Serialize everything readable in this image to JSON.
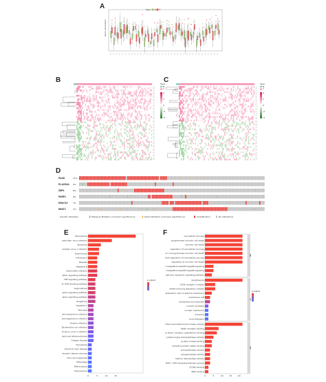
{
  "panels": {
    "a": "A",
    "b": "B",
    "c": "C",
    "d": "D",
    "e": "E",
    "f": "F"
  },
  "panel_a": {
    "legend_title": "Type",
    "legend_items": [
      {
        "label": "N",
        "color": "#9ccc65"
      },
      {
        "label": "T",
        "color": "#ef5350"
      }
    ],
    "ylabel": "Gene expression",
    "num_genes": 36
  },
  "panel_b": {
    "legend_title": "Type",
    "legend_items": [
      {
        "label": "N",
        "color": "#80cbc4"
      },
      {
        "label": "T",
        "color": "#f48fb1"
      }
    ],
    "scale_labels": [
      "4",
      "2",
      "0",
      "-2",
      "-4"
    ]
  },
  "panel_c": {
    "legend_title": "Type",
    "legend_items": [
      {
        "label": "N",
        "color": "#80cbc4"
      },
      {
        "label": "T",
        "color": "#f48fb1"
      }
    ],
    "scale_labels": [
      "4",
      "2",
      "0",
      "-2",
      "-4"
    ]
  },
  "panel_d": {
    "genes": [
      {
        "name": "PASD",
        "pct": "11%"
      },
      {
        "name": "PLA2G4A",
        "pct": "9%"
      },
      {
        "name": "ZBP1",
        "pct": "8%"
      },
      {
        "name": "PARP1",
        "pct": "8%"
      },
      {
        "name": "HDAC10",
        "pct": "7%"
      },
      {
        "name": "NEAT1",
        "pct": "7%"
      }
    ],
    "legend_title": "Genetic Alteration",
    "legend_items": [
      {
        "label": "Missense Mutation (unknown significance)",
        "color": "#4caf50"
      },
      {
        "label": "Splice Mutation (unknown significance)",
        "color": "#ff9800"
      },
      {
        "label": "Amplification",
        "color": "#e53935"
      },
      {
        "label": "No alterations",
        "color": "#bdbdbd"
      }
    ]
  },
  "panel_e": {
    "legend_title": "p.adjust",
    "x_ticks": [
      "0",
      "5",
      "10",
      "15"
    ],
    "terms": [
      {
        "label": "Necroptosis",
        "value": 26,
        "color": "#f44336"
      },
      {
        "label": "Epstein-Barr virus infection",
        "value": 13,
        "color": "#f44336"
      },
      {
        "label": "Apoptosis",
        "value": 7,
        "color": "#f44336"
      },
      {
        "label": "Herpes simplex virus 1 infection",
        "value": 6,
        "color": "#f44336"
      },
      {
        "label": "Tuberculosis",
        "value": 6,
        "color": "#f44336"
      },
      {
        "label": "Influenza A",
        "value": 5,
        "color": "#f44336"
      },
      {
        "label": "Measles",
        "value": 5,
        "color": "#f44336"
      },
      {
        "label": "Hepatitis B",
        "value": 5,
        "color": "#f44336"
      },
      {
        "label": "Salmonella infection",
        "value": 5,
        "color": "#e53950"
      },
      {
        "label": "NOD-like receptor signaling pathway",
        "value": 5,
        "color": "#e53950"
      },
      {
        "label": "TNF signaling pathway",
        "value": 4,
        "color": "#e53950"
      },
      {
        "label": "Cytosolic DNA-sensing pathway",
        "value": 4,
        "color": "#d43f6a"
      },
      {
        "label": "Legionellosis",
        "value": 4,
        "color": "#d43f6a"
      },
      {
        "label": "Toll-like receptor signaling pathway",
        "value": 4,
        "color": "#d43f6a"
      },
      {
        "label": "RIG-I-like receptor signaling pathway",
        "value": 4,
        "color": "#c2458a"
      },
      {
        "label": "Shigellosis",
        "value": 4,
        "color": "#c2458a"
      },
      {
        "label": "Hepatitis C",
        "value": 3,
        "color": "#b34aa6"
      },
      {
        "label": "Pertussis",
        "value": 3,
        "color": "#b34aa6"
      },
      {
        "label": "Kaposi sarcoma-associated herpesvirus infection",
        "value": 3,
        "color": "#a24fc0"
      },
      {
        "label": "Human cytomegalovirus infection",
        "value": 3,
        "color": "#a24fc0"
      },
      {
        "label": "Yersinia infection",
        "value": 3,
        "color": "#9053d8"
      },
      {
        "label": "Pathogenic Escherichia coli infection",
        "value": 3,
        "color": "#9053d8"
      },
      {
        "label": "Human immunodeficiency virus 1 infection",
        "value": 3,
        "color": "#8059ea"
      },
      {
        "label": "Lipid and atherosclerosis",
        "value": 3,
        "color": "#735ff5"
      },
      {
        "label": "Chagas disease",
        "value": 3,
        "color": "#6a64fa"
      },
      {
        "label": "Ferroptosis",
        "value": 2,
        "color": "#6a64fa"
      },
      {
        "label": "Alcoholic liver disease",
        "value": 2,
        "color": "#5f6afc"
      },
      {
        "label": "Amyotrophic lateral sclerosis",
        "value": 2,
        "color": "#5f6afc"
      },
      {
        "label": "Viral carcinogenesis",
        "value": 2,
        "color": "#5970ff"
      },
      {
        "label": "Mitophagy",
        "value": 2,
        "color": "#5970ff"
      },
      {
        "label": "Efferocytosis",
        "value": 2,
        "color": "#5676ff"
      },
      {
        "label": "Spliceosome",
        "value": 2,
        "color": "#5676ff"
      }
    ]
  },
  "panel_f": {
    "legend_title": "p.adjust",
    "x_ticks": [
      "0",
      "5",
      "10",
      "15",
      "20"
    ],
    "groups": [
      {
        "name": "BP",
        "terms": [
          {
            "label": "necroptotic process",
            "value": 22,
            "color": "#f44336"
          },
          {
            "label": "programmed necrotic cell death",
            "value": 22,
            "color": "#f44336"
          },
          {
            "label": "necrotic cell death",
            "value": 22,
            "color": "#f44336"
          },
          {
            "label": "regulation of necroptotic process",
            "value": 22,
            "color": "#f44336"
          },
          {
            "label": "regulation of programmed necrotic cell death",
            "value": 22,
            "color": "#f44336"
          },
          {
            "label": "positive regulation of necroptotic process",
            "value": 22,
            "color": "#f44336"
          },
          {
            "label": "regulation of necrotic cell death",
            "value": 22,
            "color": "#f44336"
          },
          {
            "label": "regulation of I-kappaB kinase/NF-kappaB signaling",
            "value": 5,
            "color": "#f44336"
          },
          {
            "label": "I-kappaB kinase/NF-kappaB signaling",
            "value": 5,
            "color": "#f44336"
          },
          {
            "label": "extrinsic apoptotic signaling pathway",
            "value": 4,
            "color": "#f44336"
          }
        ]
      },
      {
        "name": "CC",
        "terms": [
          {
            "label": "ripoptosome",
            "value": 22,
            "color": "#f44336"
          },
          {
            "label": "CD40 receptor complex",
            "value": 6,
            "color": "#f44336"
          },
          {
            "label": "death-inducing signaling complex",
            "value": 6,
            "color": "#f44336"
          },
          {
            "label": "cytoplasmic side of plasma membrane",
            "value": 4,
            "color": "#f44336"
          },
          {
            "label": "membrane raft",
            "value": 3,
            "color": "#f44336"
          },
          {
            "label": "membrane microdomain",
            "value": 3,
            "color": "#c2458a"
          },
          {
            "label": "nuclear envelope",
            "value": 2,
            "color": "#8059ea"
          },
          {
            "label": "nuclear membrane",
            "value": 2,
            "color": "#5676ff"
          },
          {
            "label": "nucleolus",
            "value": 2,
            "color": "#5676ff"
          },
          {
            "label": "focal adhesion",
            "value": 2,
            "color": "#5676ff"
          }
        ]
      },
      {
        "name": "MF",
        "terms": [
          {
            "label": "protein serine/threonine kinase activity",
            "value": 22,
            "color": "#f44336"
          },
          {
            "label": "death receptor binding",
            "value": 8,
            "color": "#f44336"
          },
          {
            "label": "tumor necrosis factor receptor superfamily binding",
            "value": 7,
            "color": "#f44336"
          },
          {
            "label": "cysteine-type endopeptidase activity",
            "value": 5,
            "color": "#f44336"
          },
          {
            "label": "protein kinase binding",
            "value": 4,
            "color": "#f44336"
          },
          {
            "label": "ubiquitin protein ligase binding",
            "value": 4,
            "color": "#f44336"
          },
          {
            "label": "endopeptidase activity",
            "value": 3,
            "color": "#f44336"
          },
          {
            "label": "phospholipase activity",
            "value": 3,
            "color": "#f44336"
          },
          {
            "label": "histone deacetylase activity",
            "value": 3,
            "color": "#f44336"
          },
          {
            "label": "NAD+ ADP-ribosyltransferase activity",
            "value": 3,
            "color": "#f44336"
          },
          {
            "label": "Z-DNA binding",
            "value": 2,
            "color": "#f44336"
          },
          {
            "label": "RNA binding",
            "value": 2,
            "color": "#f44336"
          }
        ]
      }
    ]
  }
}
